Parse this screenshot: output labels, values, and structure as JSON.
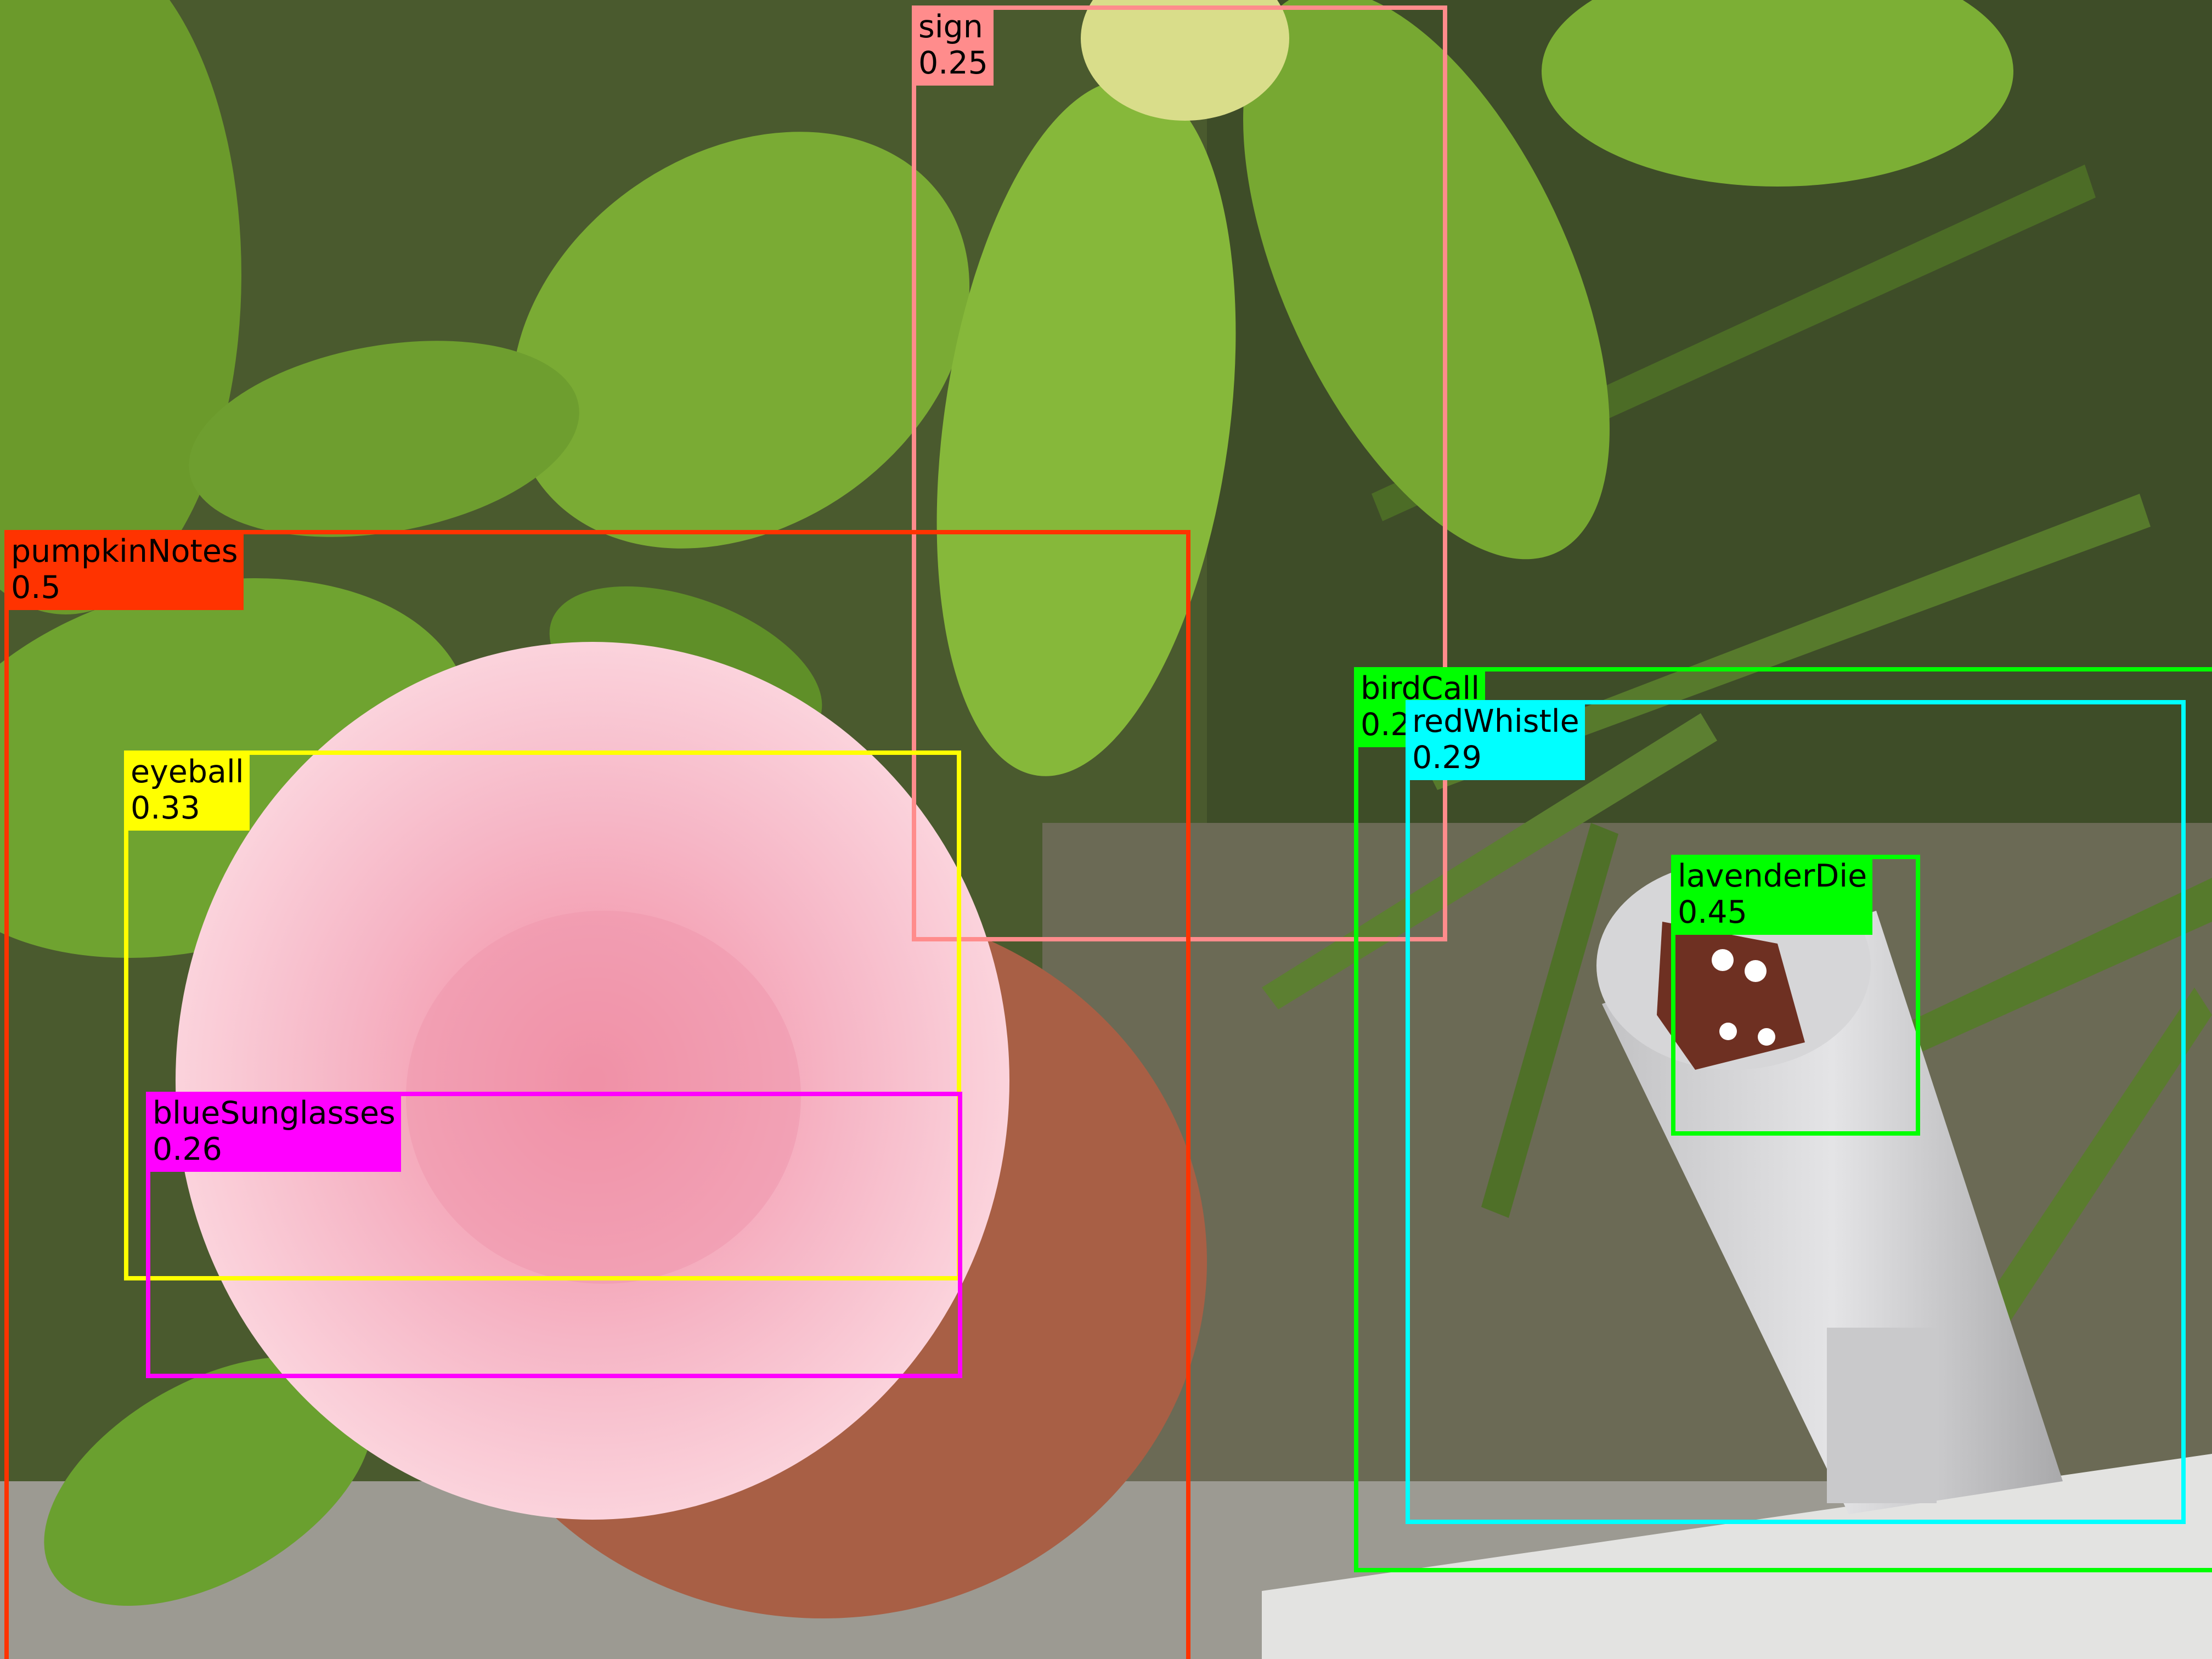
{
  "detections": [
    {
      "label": "sign",
      "score": "0.25",
      "color": "#ff8c8c"
    },
    {
      "label": "pumpkinNotes",
      "score": "0.5",
      "color": "#ff3300"
    },
    {
      "label": "eyeball",
      "score": "0.33",
      "color": "#ffff00"
    },
    {
      "label": "blueSunglasses",
      "score": "0.26",
      "color": "#ff00ff"
    },
    {
      "label": "birdCall",
      "score": "0.2",
      "color": "#00ff00"
    },
    {
      "label": "redWhistle",
      "score": "0.29",
      "color": "#00ffff"
    },
    {
      "label": "lavenderDie",
      "score": "0.45",
      "color": "#00ff00"
    }
  ]
}
